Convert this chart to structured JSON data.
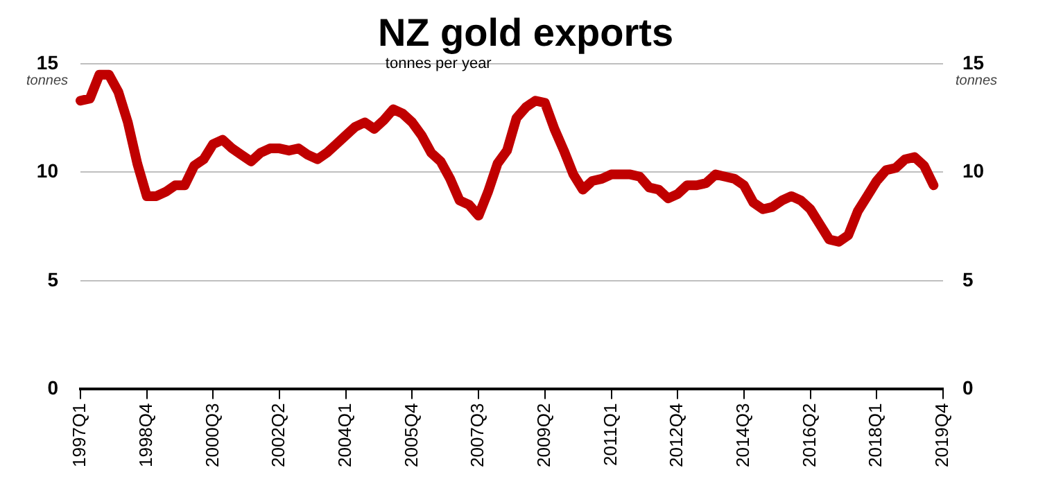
{
  "chart_data": {
    "type": "line",
    "title": "NZ gold exports",
    "subtitle": "tonnes per year",
    "ylabel": "tonnes",
    "y2label": "tonnes",
    "categories": [
      "1997Q1",
      null,
      null,
      null,
      null,
      null,
      null,
      "1998Q4",
      null,
      null,
      null,
      null,
      null,
      null,
      "2000Q3",
      null,
      null,
      null,
      null,
      null,
      null,
      "2002Q2",
      null,
      null,
      null,
      null,
      null,
      null,
      "2004Q1",
      null,
      null,
      null,
      null,
      null,
      null,
      "2005Q4",
      null,
      null,
      null,
      null,
      null,
      null,
      "2007Q3",
      null,
      null,
      null,
      null,
      null,
      null,
      "2009Q2",
      null,
      null,
      null,
      null,
      null,
      null,
      "2011Q1",
      null,
      null,
      null,
      null,
      null,
      null,
      "2012Q4",
      null,
      null,
      null,
      null,
      null,
      null,
      "2014Q3",
      null,
      null,
      null,
      null,
      null,
      null,
      "2016Q2",
      null,
      null,
      null,
      null,
      null,
      null,
      "2018Q1",
      null,
      null,
      null,
      null,
      null,
      null,
      "2019Q4"
    ],
    "series": [
      {
        "color": "#c00000",
        "values": [
          13.3,
          13.4,
          14.5,
          14.5,
          13.7,
          12.3,
          10.4,
          8.9,
          8.9,
          9.1,
          9.4,
          9.4,
          10.3,
          10.6,
          11.3,
          11.5,
          11.1,
          10.8,
          10.5,
          10.9,
          11.1,
          11.1,
          11.0,
          11.1,
          10.8,
          10.6,
          10.9,
          11.3,
          11.7,
          12.1,
          12.3,
          12.0,
          12.4,
          12.9,
          12.7,
          12.3,
          11.7,
          10.9,
          10.5,
          9.7,
          8.7,
          8.5,
          8.0,
          9.1,
          10.4,
          11.0,
          12.5,
          13.0,
          13.3,
          13.2,
          12.0,
          11.0,
          9.9,
          9.2,
          9.6,
          9.7,
          9.9,
          9.9,
          9.9,
          9.8,
          9.3,
          9.2,
          8.8,
          9.0,
          9.4,
          9.4,
          9.5,
          9.9,
          9.8,
          9.7,
          9.4,
          8.6,
          8.3,
          8.4,
          8.7,
          8.9,
          8.7,
          8.3,
          7.6,
          6.9,
          6.8,
          7.1,
          8.2,
          8.9,
          9.6,
          10.1,
          10.2,
          10.6,
          10.7,
          10.3,
          9.4,
          null
        ]
      }
    ],
    "ylim": [
      0,
      15
    ],
    "yticks": [
      0,
      5,
      10,
      15
    ],
    "y2lim": [
      0,
      15
    ],
    "y2ticks": [
      0,
      5,
      10,
      15
    ],
    "grid": "y",
    "legend": false,
    "marker": "none",
    "line_style": "solid"
  }
}
